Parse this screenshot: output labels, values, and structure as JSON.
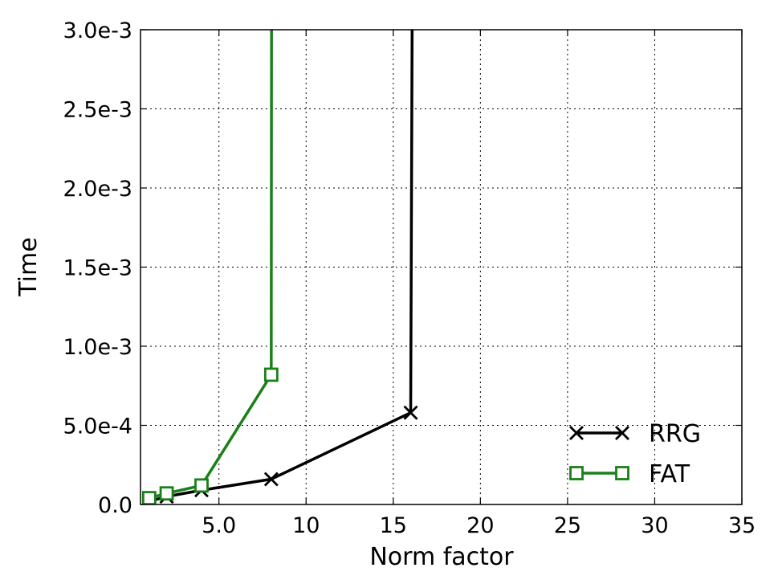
{
  "chart_data": {
    "type": "line",
    "title": "",
    "xlabel": "Norm factor",
    "ylabel": "Time",
    "xlim": [
      0.5,
      35
    ],
    "ylim": [
      0,
      0.003
    ],
    "x_ticks": [
      {
        "value": 5,
        "label": "5.0"
      },
      {
        "value": 10,
        "label": "10"
      },
      {
        "value": 15,
        "label": "15"
      },
      {
        "value": 20,
        "label": "20"
      },
      {
        "value": 25,
        "label": "25"
      },
      {
        "value": 30,
        "label": "30"
      },
      {
        "value": 35,
        "label": "35"
      }
    ],
    "y_ticks": [
      {
        "value": 0,
        "label": "0.0"
      },
      {
        "value": 0.0005,
        "label": "5.0e-4"
      },
      {
        "value": 0.001,
        "label": "1.0e-3"
      },
      {
        "value": 0.0015,
        "label": "1.5e-3"
      },
      {
        "value": 0.002,
        "label": "2.0e-3"
      },
      {
        "value": 0.0025,
        "label": "2.5e-3"
      },
      {
        "value": 0.003,
        "label": "3.0e-3"
      }
    ],
    "grid": true,
    "legend_position": "bottom-right",
    "series": [
      {
        "name": "RRG",
        "color": "#000000",
        "marker": "x",
        "x": [
          1,
          2,
          4,
          8,
          16,
          16.1
        ],
        "y": [
          2e-05,
          5e-05,
          9e-05,
          0.00016,
          0.00058,
          0.0035
        ]
      },
      {
        "name": "FAT",
        "color": "#1a8019",
        "marker": "square",
        "x": [
          1,
          2,
          4,
          8,
          8.02
        ],
        "y": [
          4e-05,
          7e-05,
          0.00012,
          0.00082,
          0.0035
        ]
      }
    ]
  }
}
